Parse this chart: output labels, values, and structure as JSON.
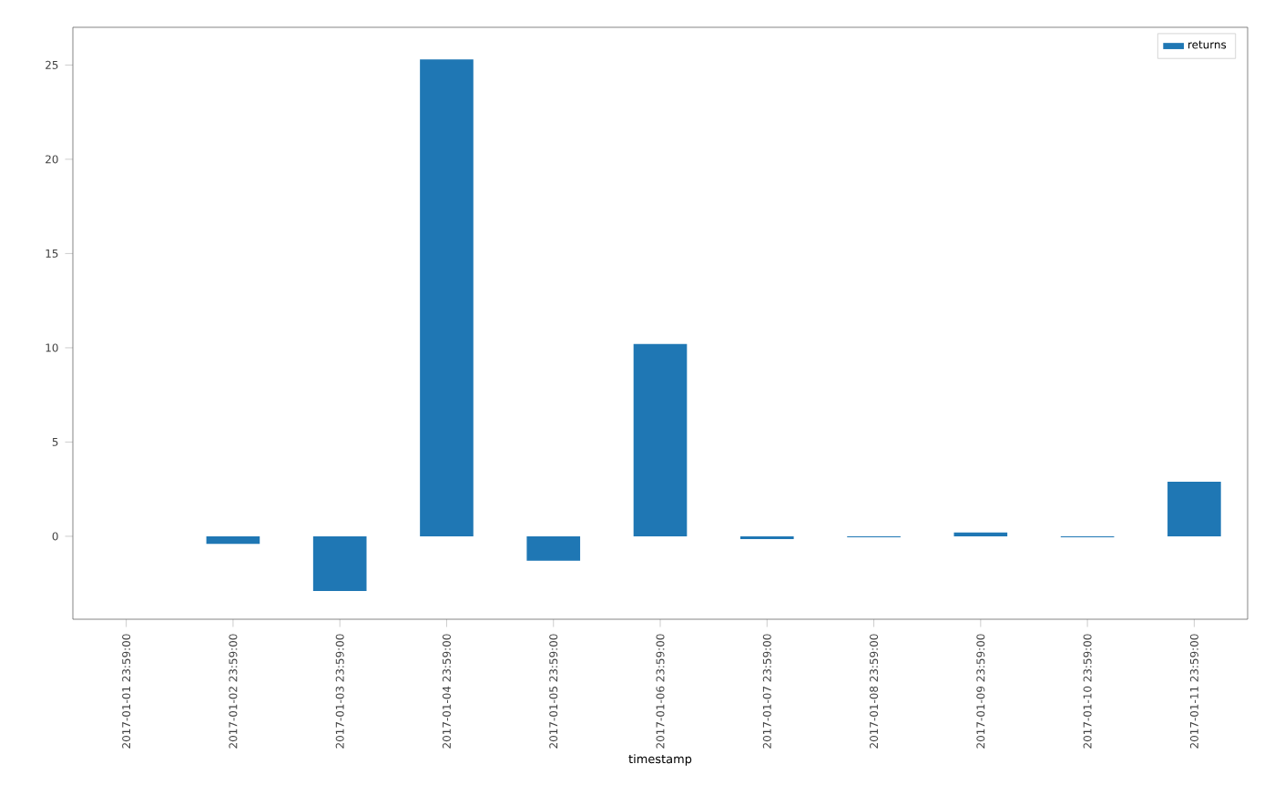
{
  "chart_data": {
    "type": "bar",
    "xlabel": "timestamp",
    "categories": [
      "2017-01-01 23:59:00",
      "2017-01-02 23:59:00",
      "2017-01-03 23:59:00",
      "2017-01-04 23:59:00",
      "2017-01-05 23:59:00",
      "2017-01-06 23:59:00",
      "2017-01-07 23:59:00",
      "2017-01-08 23:59:00",
      "2017-01-09 23:59:00",
      "2017-01-10 23:59:00",
      "2017-01-11 23:59:00"
    ],
    "series": [
      {
        "name": "returns",
        "color": "#1f77b4",
        "values": [
          null,
          -0.4,
          -2.9,
          25.3,
          -1.3,
          10.2,
          -0.15,
          -0.05,
          0.2,
          -0.05,
          2.9
        ]
      }
    ],
    "ylim": [
      -4.4,
      27.0
    ],
    "yticks": [
      0,
      5,
      10,
      15,
      20,
      25
    ],
    "grid": false,
    "legend": "top right"
  }
}
